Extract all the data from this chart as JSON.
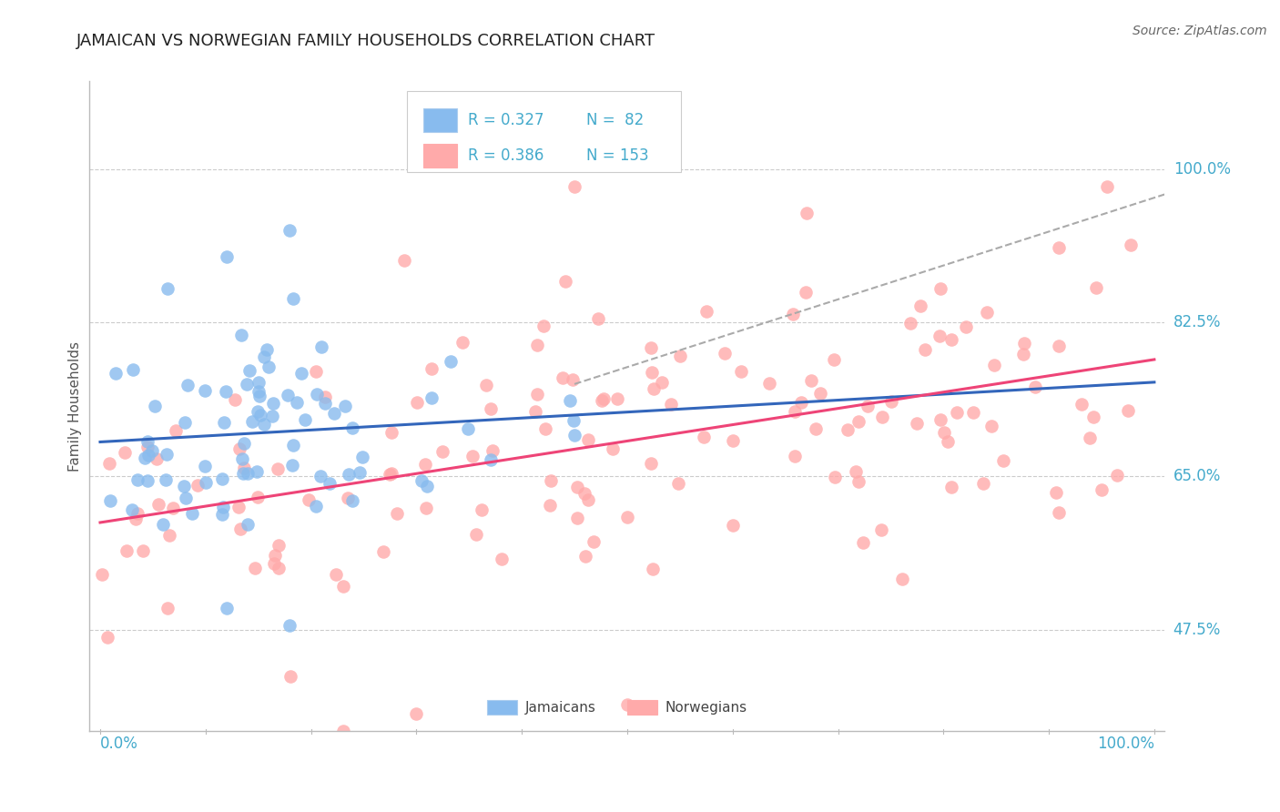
{
  "title": "JAMAICAN VS NORWEGIAN FAMILY HOUSEHOLDS CORRELATION CHART",
  "source": "Source: ZipAtlas.com",
  "ylabel": "Family Households",
  "y_tick_labels": [
    "47.5%",
    "65.0%",
    "82.5%",
    "100.0%"
  ],
  "y_tick_values": [
    0.475,
    0.65,
    0.825,
    1.0
  ],
  "xlim": [
    0.0,
    1.0
  ],
  "ylim": [
    0.38,
    1.08
  ],
  "legend_r1": "R = 0.327",
  "legend_n1": "N =  82",
  "legend_r2": "R = 0.386",
  "legend_n2": "N = 153",
  "color_jamaican": "#88BBEE",
  "color_norwegian": "#FFAAAA",
  "color_trend_jamaican": "#3366BB",
  "color_trend_norwegian": "#EE4477",
  "color_dashed": "#AAAAAA",
  "color_axis_label": "#44AACC",
  "background_color": "#FFFFFF",
  "n_jamaican": 82,
  "n_norwegian": 153,
  "r_jamaican": 0.327,
  "r_norwegian": 0.386,
  "jam_seed": 12,
  "nor_seed": 7
}
